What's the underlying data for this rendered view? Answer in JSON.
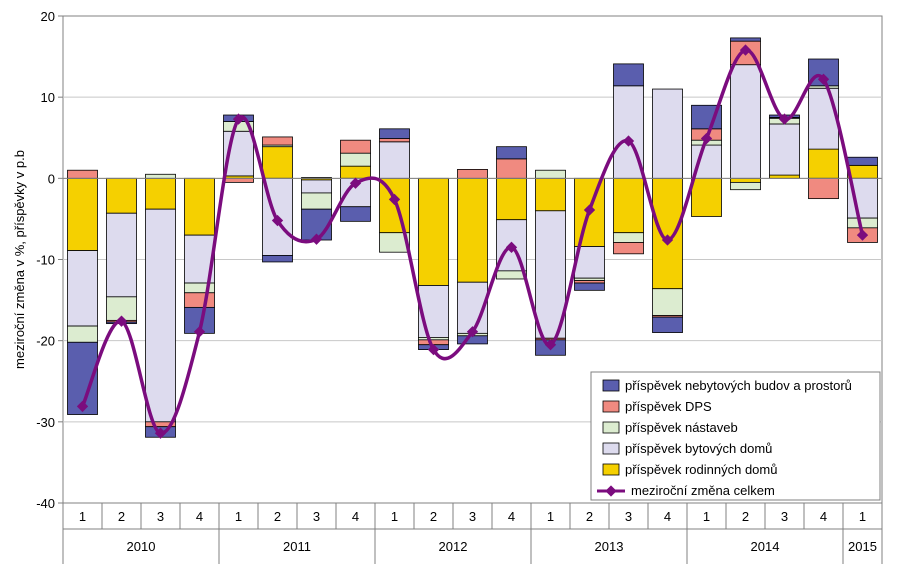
{
  "chart_data": {
    "type": "bar",
    "subtype": "stacked-bar-with-line",
    "title": "",
    "xlabel": "",
    "ylabel": "meziroční změna v %, příspěvky v p.b",
    "ylim": [
      -40,
      20
    ],
    "yticks": [
      "20",
      "10",
      "0",
      "-10",
      "-20",
      "-30",
      "-40"
    ],
    "ytick_values": [
      20,
      10,
      0,
      -10,
      -20,
      -30,
      -40
    ],
    "grid": true,
    "legend_position": "bottom-right",
    "categories": [
      "1",
      "2",
      "3",
      "4",
      "1",
      "2",
      "3",
      "4",
      "1",
      "2",
      "3",
      "4",
      "1",
      "2",
      "3",
      "4",
      "1",
      "2",
      "3",
      "4",
      "1"
    ],
    "years": [
      {
        "label": "2010",
        "count": 4
      },
      {
        "label": "2011",
        "count": 4
      },
      {
        "label": "2012",
        "count": 4
      },
      {
        "label": "2013",
        "count": 4
      },
      {
        "label": "2014",
        "count": 4
      },
      {
        "label": "2015",
        "count": 1
      }
    ],
    "series": [
      {
        "key": "rd",
        "name": "příspěvek rodinných domů",
        "color": "#f5d000",
        "values": [
          -8.9,
          -4.3,
          -3.8,
          -7.0,
          0.3,
          3.9,
          -0.2,
          1.5,
          -6.7,
          -13.2,
          -12.8,
          -5.1,
          -4.0,
          -8.4,
          -6.7,
          -13.6,
          -4.7,
          -0.5,
          0.4,
          3.6,
          1.6
        ]
      },
      {
        "key": "bd",
        "name": "příspěvek bytových domů",
        "color": "#dddbee",
        "values": [
          -9.3,
          -10.3,
          -26.2,
          -5.9,
          5.5,
          -9.5,
          -1.6,
          -3.5,
          4.5,
          -6.4,
          -6.3,
          -6.3,
          -15.7,
          -3.9,
          11.4,
          11.0,
          4.1,
          14.0,
          6.3,
          7.5,
          -4.9
        ]
      },
      {
        "key": "na",
        "name": "příspěvek nástaveb",
        "color": "#dcecd0",
        "values": [
          -2.0,
          -2.9,
          0.5,
          -1.2,
          1.2,
          0.2,
          -2.0,
          1.6,
          -2.4,
          -0.3,
          -0.3,
          -1.0,
          1.0,
          -0.3,
          -1.2,
          -3.3,
          0.6,
          -0.9,
          0.7,
          0.3,
          -1.2
        ]
      },
      {
        "key": "dps",
        "name": "příspěvek DPS",
        "color": "#f08a80",
        "values": [
          1.0,
          -0.2,
          -0.6,
          -1.8,
          -0.5,
          1.0,
          0.1,
          1.6,
          0.4,
          -0.6,
          1.1,
          2.4,
          -0.2,
          -0.3,
          -1.4,
          -0.2,
          1.4,
          2.9,
          0.1,
          -2.5,
          -1.8
        ]
      },
      {
        "key": "nb",
        "name": "příspěvek nebytových budov a prostorů",
        "color": "#5a5eae",
        "values": [
          -8.9,
          -0.2,
          -1.3,
          -3.2,
          0.8,
          -0.8,
          -3.8,
          -1.8,
          1.2,
          -0.6,
          -1.0,
          1.5,
          -1.9,
          -0.9,
          2.7,
          -1.9,
          2.9,
          0.4,
          0.3,
          3.3,
          1.0
        ]
      }
    ],
    "line": {
      "name": "meziroční změna celkem",
      "color": "#7b0c7e",
      "values": [
        -28.1,
        -17.6,
        -31.4,
        -18.9,
        7.3,
        -5.2,
        -7.5,
        -0.6,
        -2.6,
        -21.1,
        -18.9,
        -8.5,
        -20.5,
        -3.9,
        4.6,
        -7.6,
        4.9,
        15.8,
        7.3,
        12.2,
        -7.0
      ]
    }
  }
}
